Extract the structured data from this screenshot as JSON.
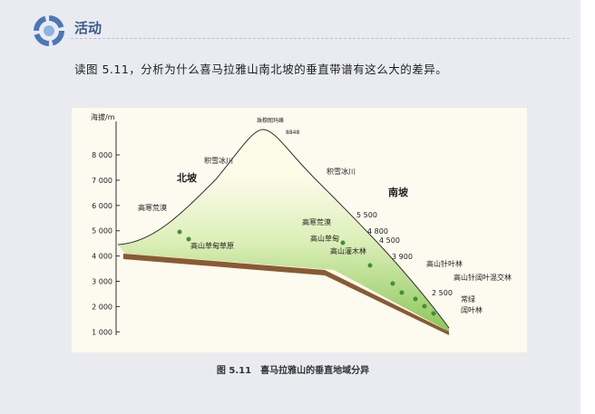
{
  "header": {
    "title": "活动"
  },
  "question": "读图 5.11，分析为什么喜马拉雅山南北坡的垂直带谱有这么大的差异。",
  "figure": {
    "axis_title": "海拔/m",
    "ticks": [
      "8 000",
      "7 000",
      "6 000",
      "5 000",
      "4 000",
      "3 000",
      "2 000",
      "1 000"
    ],
    "labels": [
      "珠穆朗玛峰",
      "8848",
      "积雪冰川",
      "北坡",
      "积雪冰川",
      "南坡",
      "高寒荒漠",
      "高山草甸草原",
      "高寒荒漠",
      "5 500",
      "高山草甸",
      "4 800",
      "4 500",
      "高山灌木林",
      "3 900",
      "高山针叶林",
      "高山针阔叶混交林",
      "2 500",
      "常绿",
      "阔叶林"
    ]
  },
  "caption": {
    "number": "图 5.11",
    "text": "喜马拉雅山的垂直地域分异"
  }
}
